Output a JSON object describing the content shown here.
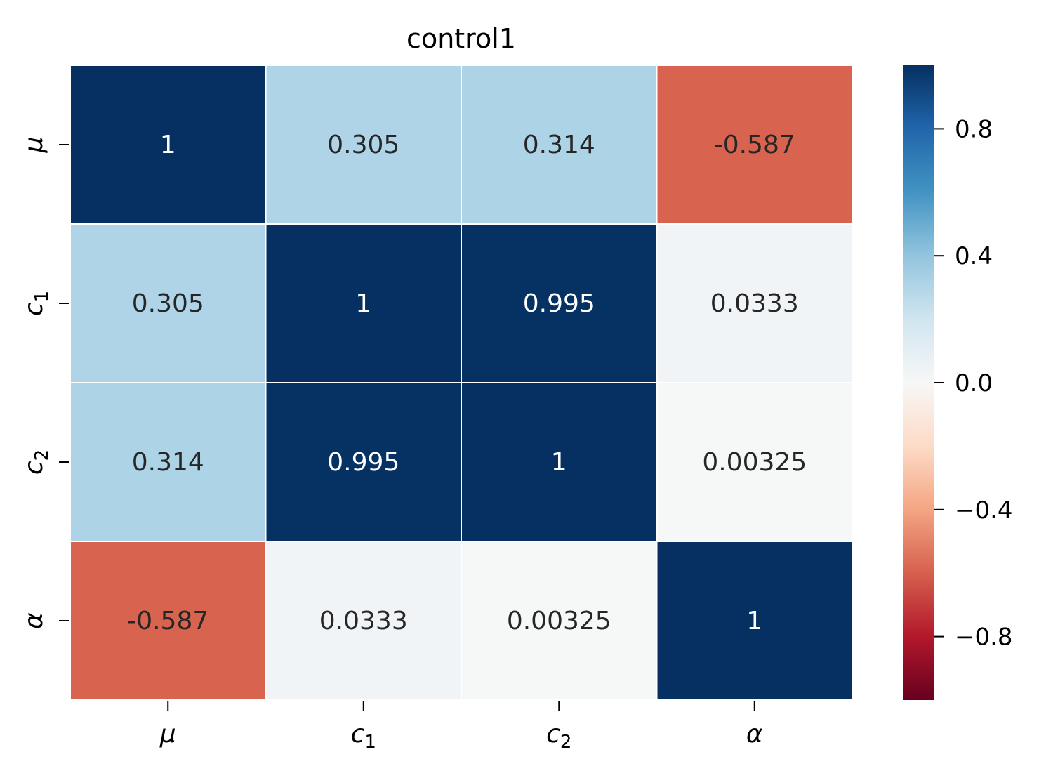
{
  "chart_data": {
    "type": "heatmap",
    "title": "control1",
    "x_labels": [
      {
        "base": "μ",
        "sub": ""
      },
      {
        "base": "c",
        "sub": "1"
      },
      {
        "base": "c",
        "sub": "2"
      },
      {
        "base": "α",
        "sub": ""
      }
    ],
    "y_labels": [
      {
        "base": "μ",
        "sub": ""
      },
      {
        "base": "c",
        "sub": "1"
      },
      {
        "base": "c",
        "sub": "2"
      },
      {
        "base": "α",
        "sub": ""
      }
    ],
    "values": [
      [
        1,
        0.305,
        0.314,
        -0.587
      ],
      [
        0.305,
        1,
        0.995,
        0.0333
      ],
      [
        0.314,
        0.995,
        1,
        0.00325
      ],
      [
        -0.587,
        0.0333,
        0.00325,
        1
      ]
    ],
    "cell_text": [
      [
        "1",
        "0.305",
        "0.314",
        "-0.587"
      ],
      [
        "0.305",
        "1",
        "0.995",
        "0.0333"
      ],
      [
        "0.314",
        "0.995",
        "1",
        "0.00325"
      ],
      [
        "-0.587",
        "0.0333",
        "0.00325",
        "1"
      ]
    ],
    "colormap": "RdBu",
    "vmin": -1,
    "vmax": 1,
    "colorbar": {
      "ticks": [
        0.8,
        0.4,
        0.0,
        -0.4,
        -0.8
      ],
      "tick_labels": [
        "0.8",
        "0.4",
        "0.0",
        "−0.4",
        "−0.8"
      ]
    },
    "grid": true
  }
}
